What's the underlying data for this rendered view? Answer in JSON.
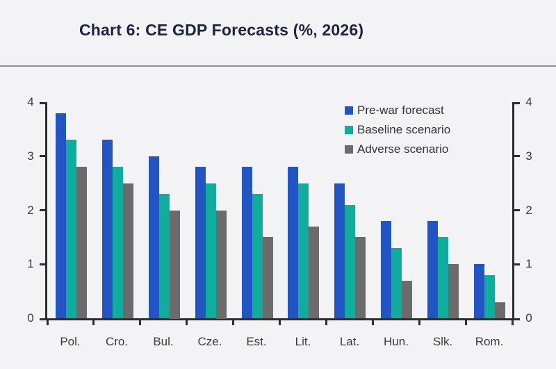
{
  "header": {
    "title": "Chart 6: CE GDP Forecasts (%, 2026)"
  },
  "colors": {
    "background": "#f3f3f5",
    "title": "#1c2340",
    "divider": "#8f8f9b",
    "axis": "#2d2d30",
    "tick_label": "#3c3c40",
    "x_label": "#3c3c40",
    "legend_text": "#323237"
  },
  "chart_data": {
    "type": "bar",
    "title": "Chart 6: CE GDP Forecasts (%, 2026)",
    "categories": [
      "Pol.",
      "Cro.",
      "Bul.",
      "Cze.",
      "Est.",
      "Lit.",
      "Lat.",
      "Hun.",
      "Slk.",
      "Rom."
    ],
    "series": [
      {
        "name": "Pre-war forecast",
        "color": "#2254c4",
        "values": [
          3.8,
          3.3,
          3.0,
          2.8,
          2.8,
          2.8,
          2.5,
          1.8,
          1.8,
          1.0
        ]
      },
      {
        "name": "Baseline scenario",
        "color": "#10ac9d",
        "values": [
          3.3,
          2.8,
          2.3,
          2.5,
          2.3,
          2.5,
          2.1,
          1.3,
          1.5,
          0.8
        ]
      },
      {
        "name": "Adverse scenario",
        "color": "#6b6b6b",
        "values": [
          2.8,
          2.5,
          2.0,
          2.0,
          1.5,
          1.7,
          1.5,
          0.7,
          1.0,
          0.3
        ]
      }
    ],
    "xlabel": "",
    "ylabel": "",
    "ylim": [
      0,
      4
    ],
    "yticks": [
      0,
      1,
      2,
      3,
      4
    ],
    "dual_y_axis": true,
    "grid": false,
    "legend_position": "top-right"
  }
}
